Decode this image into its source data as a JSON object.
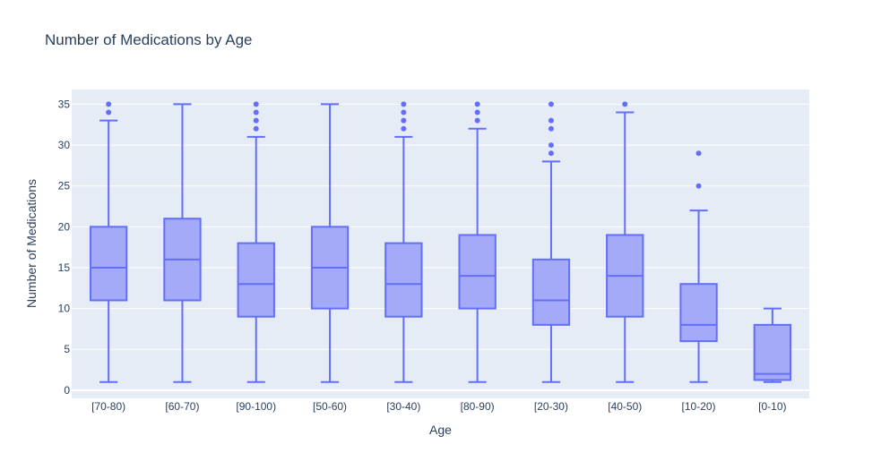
{
  "chart_data": {
    "type": "box",
    "title": "Number of Medications by Age",
    "xlabel": "Age",
    "ylabel": "Number of Medications",
    "ylim": [
      -1,
      36.8
    ],
    "yticks": [
      0,
      5,
      10,
      15,
      20,
      25,
      30,
      35
    ],
    "grid": true,
    "legend": "none",
    "colors": {
      "box_fill": "#a4aaf7",
      "box_line": "#636efa",
      "plot_bg": "#e5ecf6",
      "grid": "#ffffff",
      "text": "#2a3f5f"
    },
    "categories": [
      "[70-80)",
      "[60-70)",
      "[90-100)",
      "[50-60)",
      "[30-40)",
      "[80-90)",
      "[20-30)",
      "[40-50)",
      "[10-20)",
      "[0-10)"
    ],
    "boxes": [
      {
        "category": "[70-80)",
        "min": 1,
        "q1": 11,
        "median": 15,
        "q3": 20,
        "max": 33,
        "outliers": [
          34,
          35
        ]
      },
      {
        "category": "[60-70)",
        "min": 1,
        "q1": 11,
        "median": 16,
        "q3": 21,
        "max": 35,
        "outliers": []
      },
      {
        "category": "[90-100)",
        "min": 1,
        "q1": 9,
        "median": 13,
        "q3": 18,
        "max": 31,
        "outliers": [
          32,
          33,
          34,
          35
        ]
      },
      {
        "category": "[50-60)",
        "min": 1,
        "q1": 10,
        "median": 15,
        "q3": 20,
        "max": 35,
        "outliers": []
      },
      {
        "category": "[30-40)",
        "min": 1,
        "q1": 9,
        "median": 13,
        "q3": 18,
        "max": 31,
        "outliers": [
          32,
          33,
          34,
          35
        ]
      },
      {
        "category": "[80-90)",
        "min": 1,
        "q1": 10,
        "median": 14,
        "q3": 19,
        "max": 32,
        "outliers": [
          33,
          34,
          35
        ]
      },
      {
        "category": "[20-30)",
        "min": 1,
        "q1": 8,
        "median": 11,
        "q3": 16,
        "max": 28,
        "outliers": [
          29,
          30,
          32,
          33,
          35
        ]
      },
      {
        "category": "[40-50)",
        "min": 1,
        "q1": 9,
        "median": 14,
        "q3": 19,
        "max": 34,
        "outliers": [
          35
        ]
      },
      {
        "category": "[10-20)",
        "min": 1,
        "q1": 6,
        "median": 8,
        "q3": 13,
        "max": 22,
        "outliers": [
          25,
          29
        ]
      },
      {
        "category": "[0-10)",
        "min": 1,
        "q1": 1.25,
        "median": 2,
        "q3": 8,
        "max": 10,
        "outliers": []
      }
    ]
  }
}
